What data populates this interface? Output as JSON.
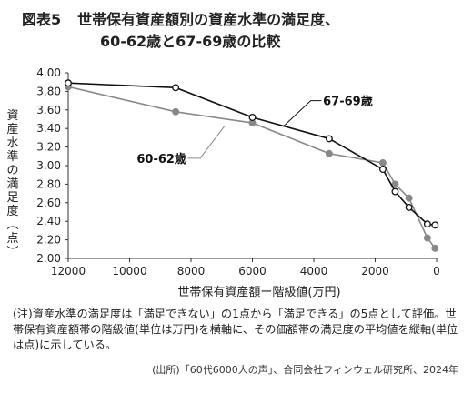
{
  "figure": {
    "label": "図表5",
    "title_line1": "世帯保有資産額別の資産水準の満足度、",
    "title_line2": "60-62歳と67-69歳の比較",
    "note": "(注)資産水準の満足度は「満足できない」の1点から「満足できる」の5点として評価。世帯保有資産額帯の階級値(単位は万円)を横軸に、その価額帯の満足度の平均値を縦軸(単位は点)に示している。",
    "source": "(出所)「60代6000人の声」、合同会社フィンウェル研究所、2024年"
  },
  "chart_data": {
    "type": "line",
    "xlabel": "世帯保有資産額ー階級値(万円)",
    "ylabel": "資産水準の満足度(点)",
    "x_reversed": true,
    "xlim": [
      12000,
      0
    ],
    "ylim": [
      2.0,
      4.0
    ],
    "x_ticks": [
      12000,
      10000,
      8000,
      6000,
      4000,
      2000,
      0
    ],
    "x_tick_labels": [
      "12000",
      "10000",
      "8000",
      "6000",
      "4000",
      "2000",
      "0"
    ],
    "y_ticks": [
      2.0,
      2.2,
      2.4,
      2.6,
      2.8,
      3.0,
      3.2,
      3.4,
      3.6,
      3.8,
      4.0
    ],
    "y_tick_labels": [
      "2.00",
      "2.20",
      "2.40",
      "2.60",
      "2.80",
      "3.00",
      "3.20",
      "3.40",
      "3.60",
      "3.80",
      "4.00"
    ],
    "grid": false,
    "series": [
      {
        "name": "67-69歳",
        "color": "#111111",
        "x": [
          12000,
          8500,
          6000,
          3500,
          1750,
          1350,
          900,
          300,
          50
        ],
        "y": [
          3.89,
          3.84,
          3.52,
          3.29,
          2.96,
          2.72,
          2.55,
          2.37,
          2.36
        ]
      },
      {
        "name": "60-62歳",
        "color": "#888888",
        "x": [
          12000,
          8500,
          6000,
          3500,
          1750,
          1350,
          900,
          300,
          50
        ],
        "y": [
          3.85,
          3.58,
          3.46,
          3.13,
          3.03,
          2.8,
          2.65,
          2.22,
          2.11
        ]
      }
    ]
  }
}
